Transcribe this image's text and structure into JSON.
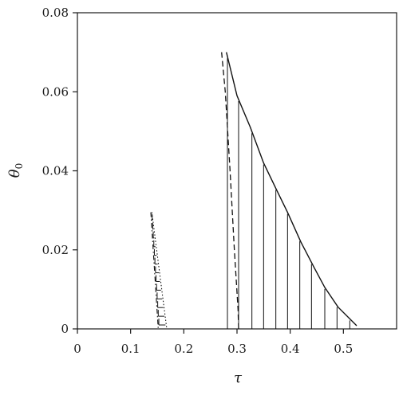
{
  "chart_data": {
    "type": "line",
    "title": "",
    "xlabel": "τ",
    "ylabel": "θ",
    "ylabel_subscript": "0",
    "xlim": [
      0,
      0.6
    ],
    "ylim": [
      0,
      0.08
    ],
    "x_ticks": [
      0,
      0.1,
      0.2,
      0.3,
      0.4,
      0.5
    ],
    "x_tick_labels": [
      "0",
      "0.1",
      "0.2",
      "0.3",
      "0.4",
      "0.5"
    ],
    "y_ticks": [
      0,
      0.02,
      0.04,
      0.06,
      0.08
    ],
    "y_tick_labels": [
      "0",
      "0.02",
      "0.04",
      "0.06",
      "0.08"
    ],
    "grid": false,
    "legend": "none",
    "series": [
      {
        "style": "dash-dot",
        "points": [
          [
            0.138,
            0.0295
          ],
          [
            0.152,
            0.0
          ]
        ]
      },
      {
        "style": "dotted-shaded-region",
        "points": [
          [
            0.14,
            0.0295
          ],
          [
            0.168,
            0.0
          ]
        ]
      },
      {
        "style": "dashed",
        "points": [
          [
            0.271,
            0.07
          ],
          [
            0.278,
            0.06
          ],
          [
            0.287,
            0.04
          ],
          [
            0.295,
            0.02
          ],
          [
            0.302,
            0.005
          ],
          [
            0.303,
            0.0
          ]
        ]
      },
      {
        "style": "solid",
        "points": [
          [
            0.28,
            0.07
          ],
          [
            0.3,
            0.059
          ],
          [
            0.325,
            0.051
          ],
          [
            0.35,
            0.042
          ],
          [
            0.375,
            0.035
          ],
          [
            0.395,
            0.0295
          ],
          [
            0.42,
            0.022
          ],
          [
            0.445,
            0.0155
          ],
          [
            0.465,
            0.0105
          ],
          [
            0.49,
            0.0055
          ],
          [
            0.525,
            0.0008
          ]
        ]
      }
    ],
    "vertical_hatch_x": [
      0.282,
      0.303,
      0.328,
      0.35,
      0.373,
      0.395,
      0.418,
      0.44,
      0.465,
      0.488,
      0.512
    ]
  }
}
